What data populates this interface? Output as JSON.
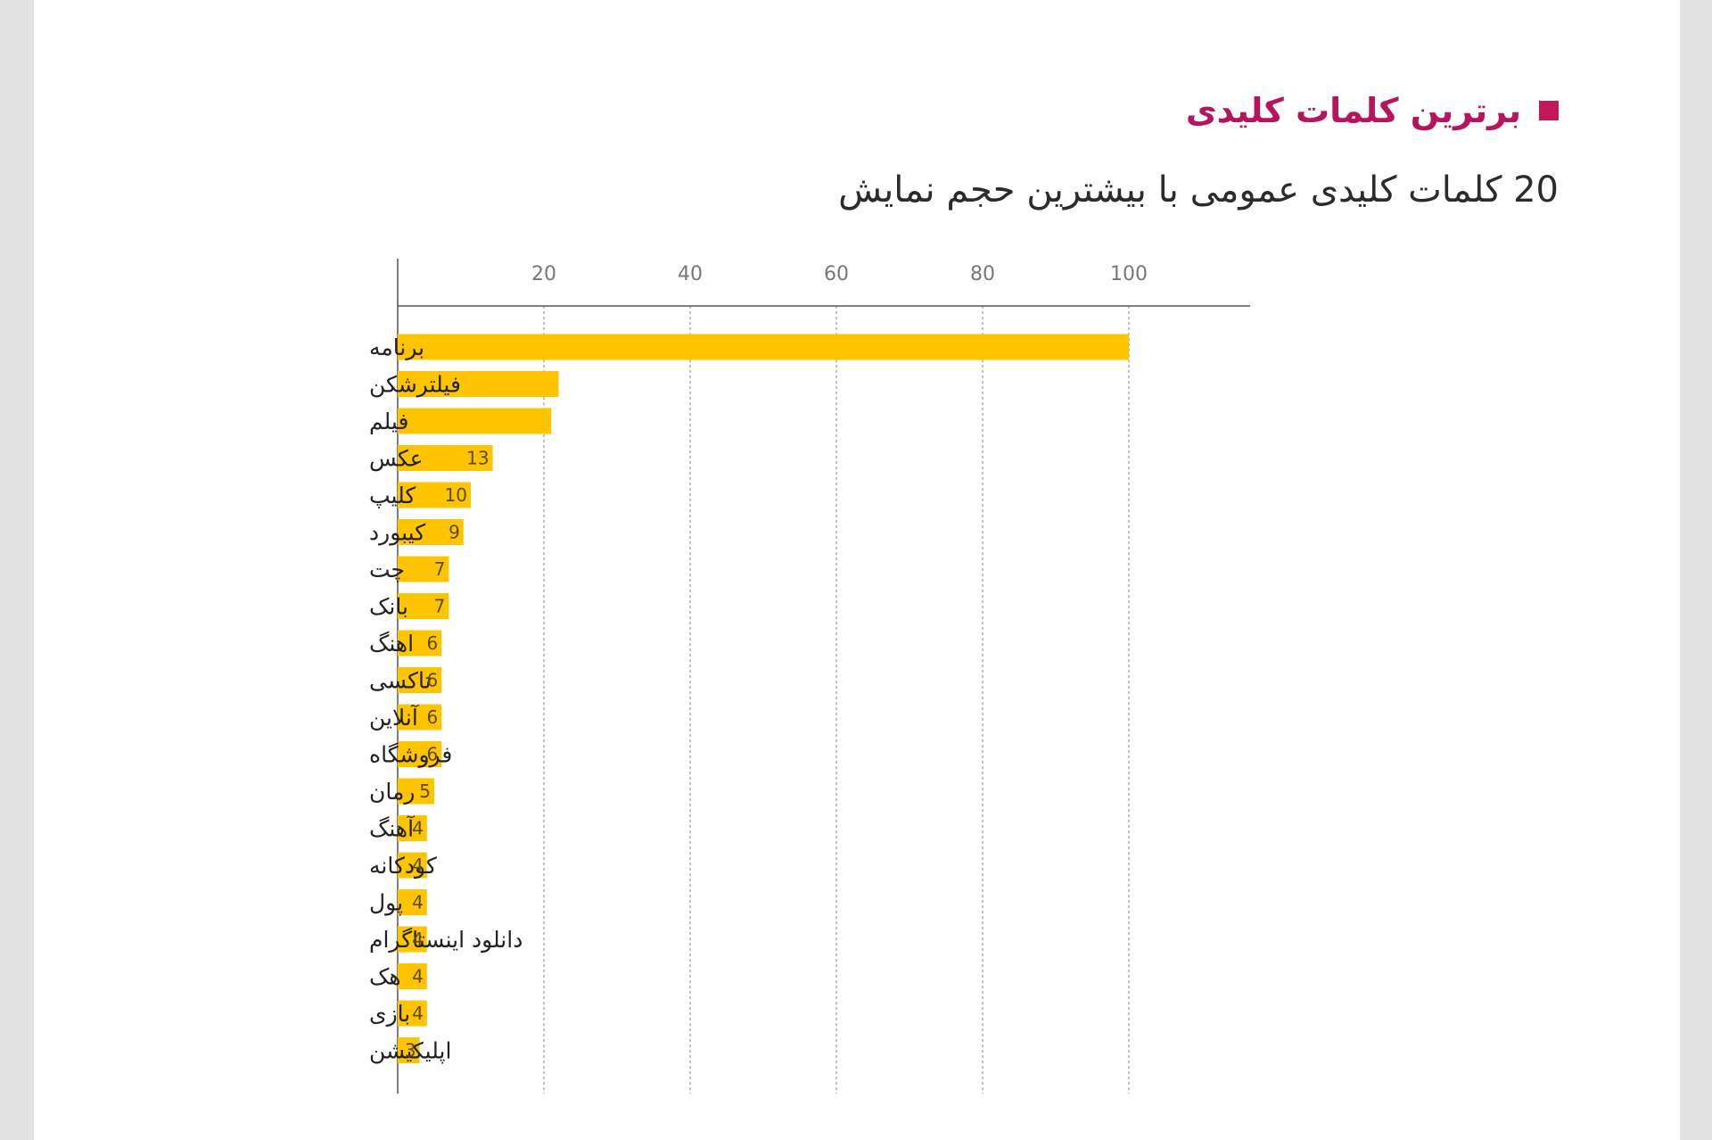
{
  "page": {
    "title": "برترین کلمات کلیدی",
    "subtitle": "20 کلمات کلیدی عمومی با بیشترین حجم نمایش"
  },
  "colors": {
    "title": "#b7145f",
    "title_marker": "#c2185b",
    "bar": "#ffc400",
    "grid": "#9a9a9a",
    "axis": "#555555"
  },
  "chart_data": {
    "type": "bar",
    "orientation": "horizontal",
    "title": "برترین کلمات کلیدی",
    "subtitle": "20 کلمات کلیدی عمومی با بیشترین حجم نمایش",
    "xlabel": "",
    "ylabel": "",
    "xlim": [
      0,
      115
    ],
    "xticks": [
      20,
      40,
      60,
      80,
      100
    ],
    "grid": true,
    "categories": [
      "برنامه",
      "فیلترشکن",
      "فیلم",
      "عکس",
      "کلیپ",
      "کیبورد",
      "چت",
      "بانک",
      "اهنگ",
      "تاکسی",
      "آنلاین",
      "فروشگاه",
      "رمان",
      "آهنگ",
      "کودکانه",
      "پول",
      "دانلود اینستاگرام",
      "هک",
      "بازی",
      "اپلیکیشن"
    ],
    "values": [
      100,
      22,
      21,
      13,
      10,
      9,
      7,
      7,
      6,
      6,
      6,
      6,
      5,
      4,
      4,
      4,
      4,
      4,
      4,
      3
    ],
    "data_labels": [
      "",
      "",
      "",
      "13",
      "10",
      "9",
      "7",
      "7",
      "6",
      "6",
      "6",
      "6",
      "5",
      "4",
      "4",
      "4",
      "4",
      "4",
      "4",
      "3"
    ]
  }
}
